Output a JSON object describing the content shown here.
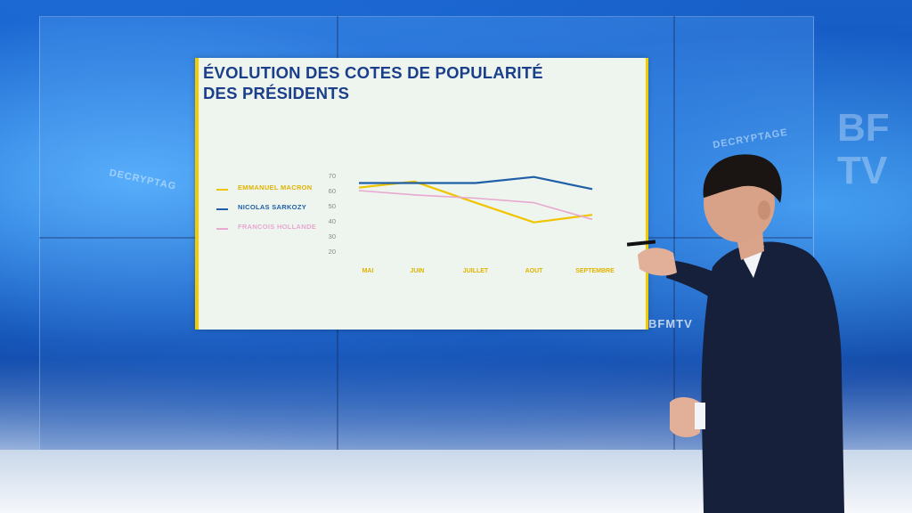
{
  "chart_data": {
    "type": "line",
    "title_lines": [
      "ÉVOLUTION DES COTES DE POPULARITÉ",
      "DES PRÉSIDENTS"
    ],
    "categories": [
      "MAI",
      "JUIN",
      "JUILLET",
      "AOUT",
      "SEPTEMBRE"
    ],
    "y_ticks": [
      70,
      60,
      50,
      40,
      30,
      20
    ],
    "ylim": [
      20,
      70
    ],
    "grid": false,
    "legend_position": "left",
    "series": [
      {
        "name": "EMMANUEL MACRON",
        "color": "#f0c400",
        "x": [
          0,
          0.95,
          2.0,
          3.0,
          4.0
        ],
        "values": [
          62,
          66,
          52,
          39,
          44
        ]
      },
      {
        "name": "NICOLAS SARKOZY",
        "color": "#1f5fa8",
        "x": [
          0,
          1.0,
          2.0,
          3.0,
          4.0
        ],
        "values": [
          65,
          65,
          65,
          69,
          61
        ]
      },
      {
        "name": "FRANCOIS HOLLANDE",
        "color": "#e8a8d0",
        "x": [
          0,
          1.0,
          2.0,
          3.0,
          4.0
        ],
        "values": [
          60,
          57,
          55,
          52,
          41
        ]
      }
    ]
  },
  "colors": {
    "title": "#1b3f8a",
    "axis_text": "#8a8a8a",
    "category_text": "#e0b400",
    "panel_bg": "#eef4ee",
    "panel_edge": "#f2cc00"
  },
  "background_text": {
    "left_label": "DECRYPTAG",
    "right_label": "DECRYPTAGE",
    "channel_logo": "BFMTV",
    "right_logo_lines": [
      "BF",
      "TV"
    ]
  }
}
